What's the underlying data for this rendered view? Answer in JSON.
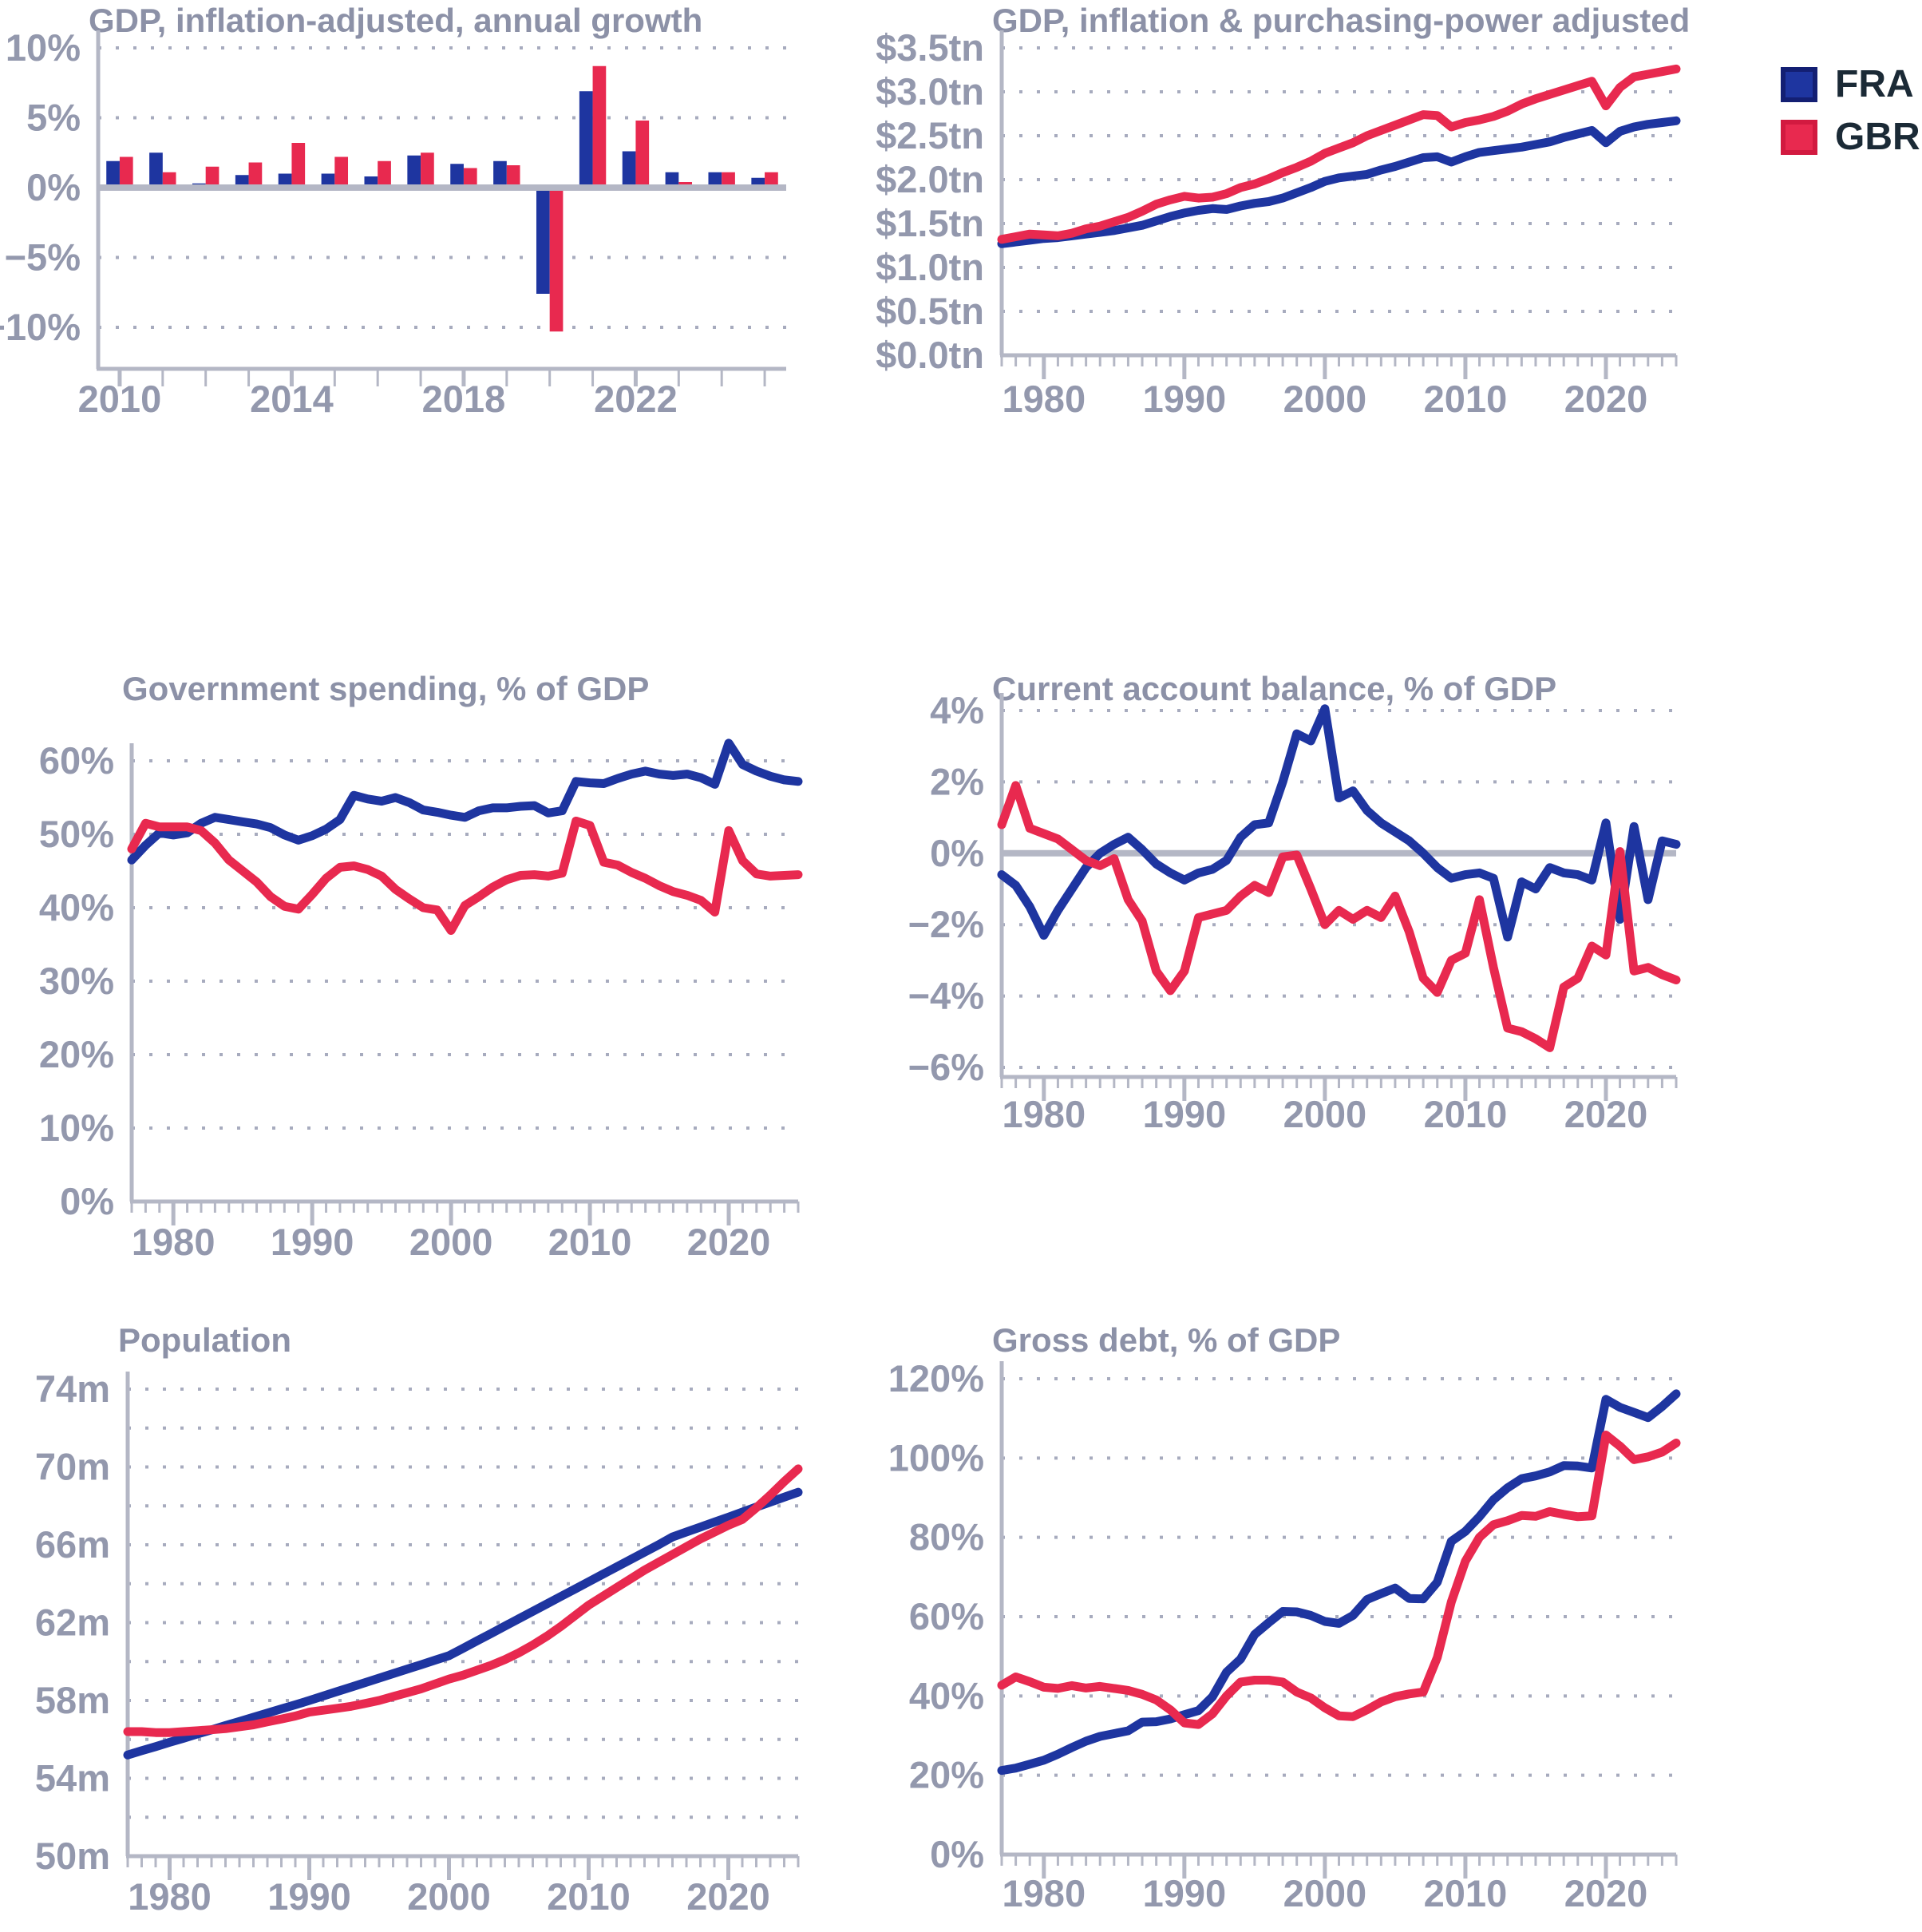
{
  "page": {
    "background": "#ffffff"
  },
  "legend": {
    "position": "top-right",
    "items": [
      {
        "label": "FRA",
        "color": "#1e35a0",
        "border": "#131f73"
      },
      {
        "label": "GBR",
        "color": "#e8294f",
        "border": "#d21a40"
      }
    ]
  },
  "style_colors": {
    "title": "#8c91a7",
    "tick_label": "#9398ad",
    "grid_dots": "#a7abbe",
    "spine": "#b4b7c5",
    "zero_line": "#b4b7c5",
    "legend_text": "#1b2a36"
  },
  "chart_data": [
    {
      "id": "gdp_growth",
      "type": "bar",
      "title": "GDP, inflation-adjusted, annual growth",
      "x_start": 2010,
      "x_end": 2025,
      "ylim": [
        -10,
        10
      ],
      "grid": true,
      "zero_line": true,
      "solid_bottom": false,
      "ygrid": [
        10,
        5,
        0,
        -5,
        -10
      ],
      "yticks": [
        {
          "v": 10,
          "label": "10%"
        },
        {
          "v": 5,
          "label": "5%"
        },
        {
          "v": 0,
          "label": "0%"
        },
        {
          "v": -5,
          "label": "−5%"
        },
        {
          "v": -10,
          "label": "−10%"
        }
      ],
      "xticks": [
        {
          "v": 2010,
          "label": "2010"
        },
        {
          "v": 2014,
          "label": "2014"
        },
        {
          "v": 2018,
          "label": "2018"
        },
        {
          "v": 2022,
          "label": "2022"
        }
      ],
      "series": [
        {
          "name": "FRA",
          "values": [
            1.9,
            2.5,
            0.3,
            0.9,
            1.0,
            1.0,
            0.8,
            2.3,
            1.7,
            1.9,
            -7.6,
            6.9,
            2.6,
            1.1,
            1.1,
            0.7
          ]
        },
        {
          "name": "GBR",
          "values": [
            2.2,
            1.1,
            1.5,
            1.8,
            3.2,
            2.2,
            1.9,
            2.5,
            1.4,
            1.6,
            -10.3,
            8.7,
            4.8,
            0.4,
            1.1,
            1.1
          ]
        }
      ]
    },
    {
      "id": "gdp_ppp",
      "type": "line",
      "title": "GDP, inflation & purchasing-power adjusted",
      "x_start": 1977,
      "x_end": 2025,
      "ylim": [
        0,
        3.5
      ],
      "grid": true,
      "zero_line": false,
      "solid_bottom": true,
      "ygrid": [
        3.5,
        3.0,
        2.5,
        2.0,
        1.5,
        1.0,
        0.5,
        0.0
      ],
      "yticks": [
        {
          "v": 3.5,
          "label": "$3.5tn"
        },
        {
          "v": 3.0,
          "label": "$3.0tn"
        },
        {
          "v": 2.5,
          "label": "$2.5tn"
        },
        {
          "v": 2.0,
          "label": "$2.0tn"
        },
        {
          "v": 1.5,
          "label": "$1.5tn"
        },
        {
          "v": 1.0,
          "label": "$1.0tn"
        },
        {
          "v": 0.5,
          "label": "$0.5tn"
        },
        {
          "v": 0.0,
          "label": "$0.0tn"
        }
      ],
      "xticks": [
        {
          "v": 1980,
          "label": "1980"
        },
        {
          "v": 1990,
          "label": "1990"
        },
        {
          "v": 2000,
          "label": "2000"
        },
        {
          "v": 2010,
          "label": "2010"
        },
        {
          "v": 2020,
          "label": "2020"
        }
      ],
      "series": [
        {
          "name": "FRA",
          "values": [
            1.27,
            1.29,
            1.31,
            1.33,
            1.34,
            1.36,
            1.38,
            1.4,
            1.42,
            1.45,
            1.48,
            1.53,
            1.58,
            1.62,
            1.65,
            1.67,
            1.66,
            1.7,
            1.73,
            1.75,
            1.79,
            1.85,
            1.91,
            1.98,
            2.02,
            2.04,
            2.06,
            2.11,
            2.15,
            2.2,
            2.25,
            2.26,
            2.2,
            2.26,
            2.31,
            2.33,
            2.35,
            2.37,
            2.4,
            2.43,
            2.48,
            2.52,
            2.56,
            2.42,
            2.55,
            2.6,
            2.63,
            2.65,
            2.67
          ]
        },
        {
          "name": "GBR",
          "values": [
            1.32,
            1.35,
            1.38,
            1.37,
            1.36,
            1.39,
            1.44,
            1.47,
            1.52,
            1.57,
            1.64,
            1.72,
            1.77,
            1.81,
            1.79,
            1.8,
            1.84,
            1.91,
            1.95,
            2.01,
            2.08,
            2.14,
            2.21,
            2.3,
            2.36,
            2.42,
            2.5,
            2.56,
            2.62,
            2.68,
            2.74,
            2.73,
            2.6,
            2.65,
            2.68,
            2.72,
            2.78,
            2.86,
            2.92,
            2.97,
            3.02,
            3.07,
            3.12,
            2.84,
            3.05,
            3.17,
            3.2,
            3.23,
            3.26
          ]
        }
      ]
    },
    {
      "id": "gov_spending",
      "type": "line",
      "title": "Government spending, % of GDP",
      "x_start": 1977,
      "x_end": 2025,
      "ylim": [
        0,
        60
      ],
      "grid": true,
      "zero_line": false,
      "solid_bottom": true,
      "ygrid": [
        60,
        50,
        40,
        30,
        20,
        10,
        0
      ],
      "yticks": [
        {
          "v": 60,
          "label": "60%"
        },
        {
          "v": 50,
          "label": "50%"
        },
        {
          "v": 40,
          "label": "40%"
        },
        {
          "v": 30,
          "label": "30%"
        },
        {
          "v": 20,
          "label": "20%"
        },
        {
          "v": 10,
          "label": "10%"
        },
        {
          "v": 0,
          "label": "0%"
        }
      ],
      "xticks": [
        {
          "v": 1980,
          "label": "1980"
        },
        {
          "v": 1990,
          "label": "1990"
        },
        {
          "v": 2000,
          "label": "2000"
        },
        {
          "v": 2010,
          "label": "2010"
        },
        {
          "v": 2020,
          "label": "2020"
        }
      ],
      "series": [
        {
          "name": "FRA",
          "values": [
            46.5,
            48.5,
            50.2,
            49.9,
            50.2,
            51.5,
            52.3,
            52.0,
            51.7,
            51.4,
            50.9,
            49.9,
            49.2,
            49.8,
            50.7,
            52.0,
            55.3,
            54.8,
            54.5,
            55.0,
            54.3,
            53.3,
            53.0,
            52.6,
            52.3,
            53.2,
            53.6,
            53.6,
            53.8,
            53.9,
            52.9,
            53.2,
            57.2,
            57.0,
            56.9,
            57.6,
            58.2,
            58.6,
            58.2,
            58.0,
            58.2,
            57.7,
            56.8,
            62.4,
            59.5,
            58.6,
            57.9,
            57.4,
            57.2
          ]
        },
        {
          "name": "GBR",
          "values": [
            48.0,
            51.5,
            51.0,
            51.0,
            51.0,
            50.5,
            48.8,
            46.5,
            45.0,
            43.5,
            41.5,
            40.2,
            39.8,
            41.8,
            44.0,
            45.5,
            45.7,
            45.2,
            44.3,
            42.5,
            41.2,
            40.0,
            39.7,
            36.9,
            40.3,
            41.5,
            42.8,
            43.8,
            44.4,
            44.5,
            44.3,
            44.7,
            51.8,
            51.2,
            46.2,
            45.8,
            44.8,
            44.0,
            43.0,
            42.2,
            41.7,
            41.0,
            39.4,
            50.5,
            46.4,
            44.6,
            44.3,
            44.4,
            44.5
          ]
        }
      ]
    },
    {
      "id": "current_account",
      "type": "line",
      "title": "Current account balance, % of GDP",
      "x_start": 1977,
      "x_end": 2025,
      "ylim": [
        -6,
        4
      ],
      "grid": true,
      "zero_line": true,
      "solid_bottom": false,
      "ygrid": [
        4,
        2,
        0,
        -2,
        -4,
        -6
      ],
      "yticks": [
        {
          "v": 4,
          "label": "4%"
        },
        {
          "v": 2,
          "label": "2%"
        },
        {
          "v": 0,
          "label": "0%"
        },
        {
          "v": -2,
          "label": "−2%"
        },
        {
          "v": -4,
          "label": "−4%"
        },
        {
          "v": -6,
          "label": "−6%"
        }
      ],
      "xticks": [
        {
          "v": 1980,
          "label": "1980"
        },
        {
          "v": 1990,
          "label": "1990"
        },
        {
          "v": 2000,
          "label": "2000"
        },
        {
          "v": 2010,
          "label": "2010"
        },
        {
          "v": 2020,
          "label": "2020"
        }
      ],
      "series": [
        {
          "name": "FRA",
          "values": [
            -0.6,
            -0.9,
            -1.5,
            -2.3,
            -1.6,
            -1.0,
            -0.4,
            0.0,
            0.25,
            0.45,
            0.1,
            -0.3,
            -0.55,
            -0.75,
            -0.55,
            -0.45,
            -0.2,
            0.45,
            0.8,
            0.85,
            2.0,
            3.35,
            3.15,
            4.05,
            1.55,
            1.75,
            1.2,
            0.85,
            0.6,
            0.35,
            0.0,
            -0.4,
            -0.7,
            -0.6,
            -0.55,
            -0.7,
            -2.35,
            -0.8,
            -1.0,
            -0.4,
            -0.55,
            -0.6,
            -0.75,
            0.85,
            -1.85,
            0.75,
            -1.3,
            0.35,
            0.25
          ]
        },
        {
          "name": "GBR",
          "values": [
            0.8,
            1.9,
            0.7,
            0.55,
            0.4,
            0.1,
            -0.2,
            -0.35,
            -0.15,
            -1.3,
            -1.9,
            -3.3,
            -3.85,
            -3.3,
            -1.8,
            -1.7,
            -1.6,
            -1.2,
            -0.9,
            -1.1,
            -0.1,
            -0.05,
            -1.0,
            -2.0,
            -1.6,
            -1.85,
            -1.6,
            -1.8,
            -1.2,
            -2.2,
            -3.5,
            -3.9,
            -3.0,
            -2.8,
            -1.3,
            -3.2,
            -4.9,
            -5.0,
            -5.2,
            -5.45,
            -3.75,
            -3.5,
            -2.6,
            -2.85,
            0.05,
            -3.3,
            -3.2,
            -3.4,
            -3.55
          ]
        }
      ]
    },
    {
      "id": "population",
      "type": "line",
      "title": "Population",
      "x_start": 1977,
      "x_end": 2025,
      "ylim": [
        50,
        74
      ],
      "grid": true,
      "zero_line": false,
      "solid_bottom": true,
      "ygrid": [
        74,
        72,
        70,
        68,
        66,
        64,
        62,
        60,
        58,
        56,
        54,
        52,
        50
      ],
      "yticks": [
        {
          "v": 74,
          "label": "74m"
        },
        {
          "v": 70,
          "label": "70m"
        },
        {
          "v": 66,
          "label": "66m"
        },
        {
          "v": 62,
          "label": "62m"
        },
        {
          "v": 58,
          "label": "58m"
        },
        {
          "v": 54,
          "label": "54m"
        },
        {
          "v": 50,
          "label": "50m"
        }
      ],
      "xticks": [
        {
          "v": 1980,
          "label": "1980"
        },
        {
          "v": 1990,
          "label": "1990"
        },
        {
          "v": 2000,
          "label": "2000"
        },
        {
          "v": 2010,
          "label": "2010"
        },
        {
          "v": 2020,
          "label": "2020"
        }
      ],
      "series": [
        {
          "name": "FRA",
          "values": [
            55.2,
            55.42,
            55.63,
            55.85,
            56.06,
            56.28,
            56.49,
            56.71,
            56.92,
            57.14,
            57.35,
            57.57,
            57.78,
            58.0,
            58.23,
            58.46,
            58.69,
            58.92,
            59.15,
            59.38,
            59.61,
            59.84,
            60.07,
            60.3,
            60.68,
            61.06,
            61.44,
            61.82,
            62.2,
            62.58,
            62.96,
            63.34,
            63.72,
            64.1,
            64.48,
            64.86,
            65.24,
            65.62,
            66.0,
            66.4,
            66.66,
            66.91,
            67.17,
            67.42,
            67.68,
            67.94,
            68.19,
            68.45,
            68.7
          ]
        },
        {
          "name": "GBR",
          "values": [
            56.4,
            56.4,
            56.35,
            56.35,
            56.4,
            56.45,
            56.5,
            56.55,
            56.65,
            56.75,
            56.9,
            57.05,
            57.2,
            57.4,
            57.5,
            57.6,
            57.7,
            57.85,
            58.0,
            58.2,
            58.4,
            58.6,
            58.85,
            59.1,
            59.3,
            59.55,
            59.8,
            60.1,
            60.45,
            60.85,
            61.3,
            61.8,
            62.35,
            62.9,
            63.35,
            63.8,
            64.25,
            64.7,
            65.1,
            65.5,
            65.9,
            66.3,
            66.65,
            67.0,
            67.3,
            67.9,
            68.55,
            69.25,
            69.9
          ]
        }
      ]
    },
    {
      "id": "gross_debt",
      "type": "line",
      "title": "Gross debt, % of GDP",
      "x_start": 1977,
      "x_end": 2025,
      "ylim": [
        0,
        120
      ],
      "grid": true,
      "zero_line": false,
      "solid_bottom": true,
      "ygrid": [
        120,
        100,
        80,
        60,
        40,
        20,
        0
      ],
      "yticks": [
        {
          "v": 120,
          "label": "120%"
        },
        {
          "v": 100,
          "label": "100%"
        },
        {
          "v": 80,
          "label": "80%"
        },
        {
          "v": 60,
          "label": "60%"
        },
        {
          "v": 40,
          "label": "40%"
        },
        {
          "v": 20,
          "label": "20%"
        },
        {
          "v": 0,
          "label": "0%"
        }
      ],
      "xticks": [
        {
          "v": 1980,
          "label": "1980"
        },
        {
          "v": 1990,
          "label": "1990"
        },
        {
          "v": 2000,
          "label": "2000"
        },
        {
          "v": 2010,
          "label": "2010"
        },
        {
          "v": 2020,
          "label": "2020"
        }
      ],
      "series": [
        {
          "name": "FRA",
          "values": [
            21.2,
            21.8,
            22.8,
            23.8,
            25.3,
            27.0,
            28.6,
            29.8,
            30.5,
            31.2,
            33.4,
            33.5,
            34.2,
            35.3,
            36.3,
            39.8,
            46.0,
            49.3,
            55.5,
            58.5,
            61.3,
            61.2,
            60.3,
            58.8,
            58.3,
            60.3,
            64.3,
            65.8,
            67.2,
            64.6,
            64.5,
            68.7,
            79.0,
            81.5,
            85.2,
            89.5,
            92.5,
            94.8,
            95.5,
            96.5,
            98.1,
            98.0,
            97.5,
            114.8,
            112.8,
            111.5,
            110.2,
            113.0,
            116.2
          ]
        },
        {
          "name": "GBR",
          "values": [
            42.7,
            44.8,
            43.6,
            42.2,
            41.9,
            42.6,
            42.0,
            42.4,
            41.9,
            41.4,
            40.4,
            39.0,
            36.5,
            33.2,
            32.8,
            35.5,
            40.0,
            43.5,
            44.0,
            44.0,
            43.5,
            41.0,
            39.5,
            37.0,
            35.0,
            34.8,
            36.5,
            38.5,
            39.8,
            40.5,
            41.0,
            49.7,
            63.7,
            74.0,
            80.0,
            83.2,
            84.2,
            85.5,
            85.3,
            86.5,
            85.8,
            85.2,
            85.4,
            105.8,
            103.0,
            99.6,
            100.3,
            101.5,
            103.8
          ]
        }
      ]
    }
  ]
}
